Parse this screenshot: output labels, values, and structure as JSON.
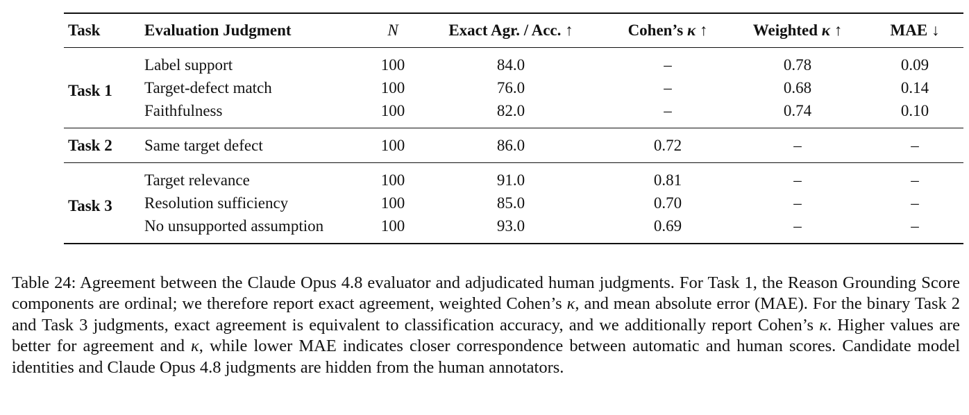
{
  "table": {
    "headers": {
      "task": "Task",
      "judgment": "Evaluation Judgment",
      "n": "N",
      "acc": "Exact Agr. / Acc. ↑",
      "cohen": "Cohen’s κ ↑",
      "weighted": "Weighted κ ↑",
      "mae": "MAE ↓"
    },
    "groups": [
      {
        "task": "Task 1",
        "rows": [
          {
            "judgment": "Label support",
            "n": "100",
            "acc": "84.0",
            "cohen": "–",
            "weighted": "0.78",
            "mae": "0.09"
          },
          {
            "judgment": "Target-defect match",
            "n": "100",
            "acc": "76.0",
            "cohen": "–",
            "weighted": "0.68",
            "mae": "0.14"
          },
          {
            "judgment": "Faithfulness",
            "n": "100",
            "acc": "82.0",
            "cohen": "–",
            "weighted": "0.74",
            "mae": "0.10"
          }
        ]
      },
      {
        "task": "Task 2",
        "rows": [
          {
            "judgment": "Same target defect",
            "n": "100",
            "acc": "86.0",
            "cohen": "0.72",
            "weighted": "–",
            "mae": "–"
          }
        ]
      },
      {
        "task": "Task 3",
        "rows": [
          {
            "judgment": "Target relevance",
            "n": "100",
            "acc": "91.0",
            "cohen": "0.81",
            "weighted": "–",
            "mae": "–"
          },
          {
            "judgment": "Resolution sufficiency",
            "n": "100",
            "acc": "85.0",
            "cohen": "0.70",
            "weighted": "–",
            "mae": "–"
          },
          {
            "judgment": "No unsupported assumption",
            "n": "100",
            "acc": "93.0",
            "cohen": "0.69",
            "weighted": "–",
            "mae": "–"
          }
        ]
      }
    ]
  },
  "caption": "Table 24: Agreement between the Claude Opus 4.8 evaluator and adjudicated human judgments. For Task 1, the Reason Grounding Score components are ordinal; we therefore report exact agreement, weighted Cohen’s κ, and mean absolute error (MAE). For the binary Task 2 and Task 3 judgments, exact agreement is equivalent to classification accuracy, and we additionally report Cohen’s κ. Higher values are better for agreement and κ, while lower MAE indicates closer correspondence between automatic and human scores. Candidate model identities and Claude Opus 4.8 judgments are hidden from the human annotators."
}
